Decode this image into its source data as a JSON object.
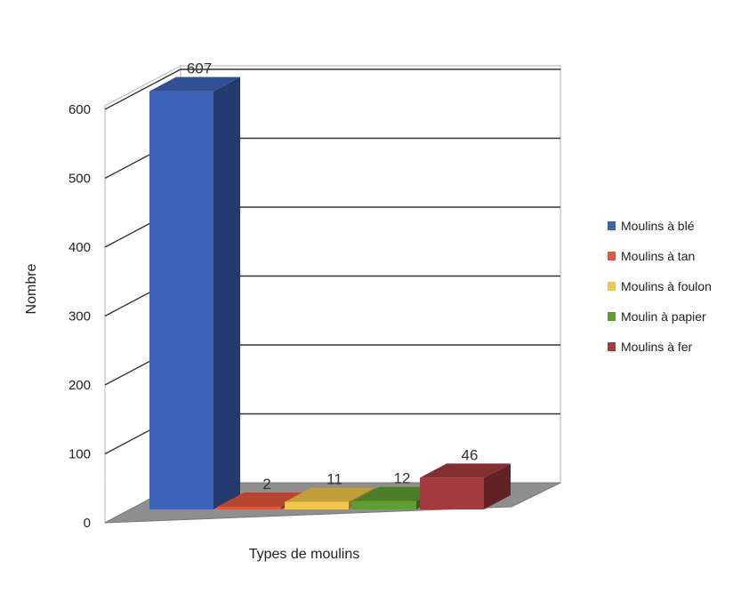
{
  "chart_data": {
    "type": "bar",
    "categories": [
      "Moulins à blé",
      "Moulins à tan",
      "Moulins à foulon",
      "Moulin à papier",
      "Moulins à fer"
    ],
    "values": [
      607,
      2,
      11,
      12,
      46
    ],
    "data_labels": [
      "607",
      "2",
      "11",
      "12",
      "46"
    ],
    "ylabel": "Nombre",
    "xlabel": "Types de moulins",
    "ylim": [
      0,
      600
    ],
    "yticks": [
      0,
      100,
      200,
      300,
      400,
      500,
      600
    ],
    "grid": true,
    "style": "3d",
    "legend_position": "right",
    "colors": [
      "#3d63b8",
      "#e2573d",
      "#f2c64a",
      "#5f9e35",
      "#a23a3f"
    ]
  }
}
